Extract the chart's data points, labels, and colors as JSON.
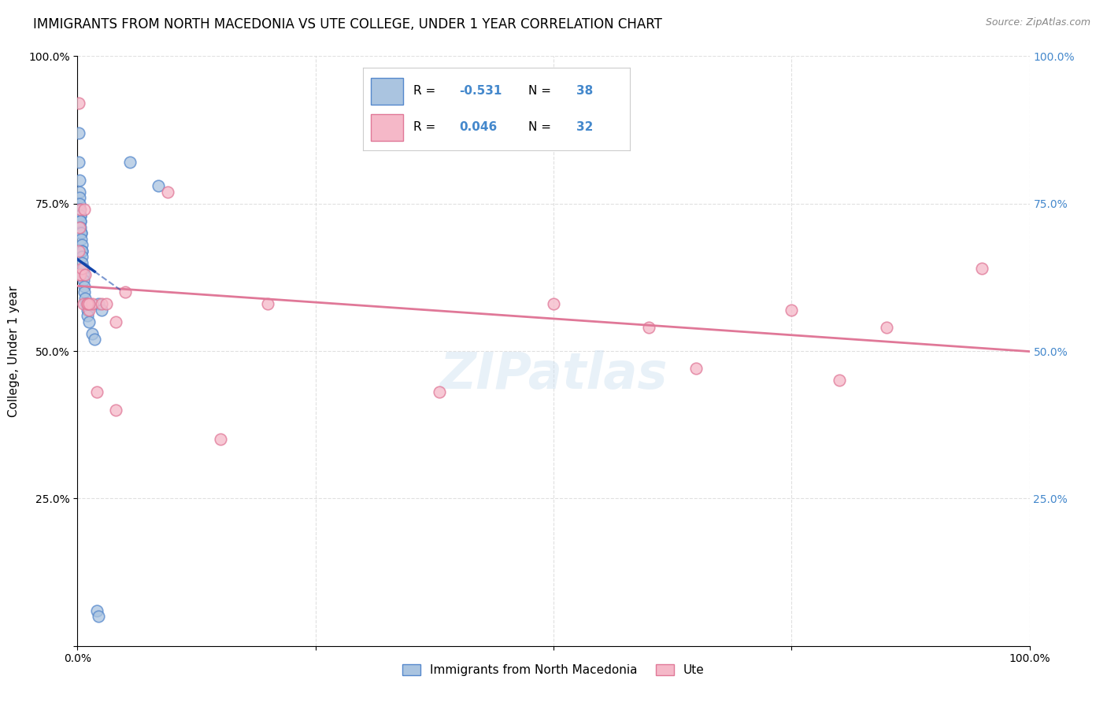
{
  "title": "IMMIGRANTS FROM NORTH MACEDONIA VS UTE COLLEGE, UNDER 1 YEAR CORRELATION CHART",
  "source": "Source: ZipAtlas.com",
  "ylabel": "College, Under 1 year",
  "xlim": [
    0,
    1.0
  ],
  "ylim": [
    0,
    1.0
  ],
  "blue_color": "#aac4e0",
  "blue_edge": "#5588cc",
  "blue_line": "#1144aa",
  "pink_color": "#f5b8c8",
  "pink_edge": "#e07898",
  "pink_line": "#e07898",
  "watermark": "ZIPatlas",
  "blue_scatter_x": [
    0.001,
    0.001,
    0.002,
    0.002,
    0.002,
    0.002,
    0.002,
    0.003,
    0.003,
    0.003,
    0.003,
    0.003,
    0.003,
    0.004,
    0.004,
    0.004,
    0.005,
    0.005,
    0.005,
    0.005,
    0.005,
    0.006,
    0.006,
    0.006,
    0.007,
    0.007,
    0.008,
    0.009,
    0.01,
    0.01,
    0.012,
    0.015,
    0.018,
    0.022,
    0.025,
    0.055,
    0.085,
    0.02,
    0.022
  ],
  "blue_scatter_y": [
    0.87,
    0.82,
    0.79,
    0.77,
    0.76,
    0.75,
    0.74,
    0.73,
    0.73,
    0.72,
    0.72,
    0.71,
    0.7,
    0.7,
    0.7,
    0.69,
    0.68,
    0.67,
    0.67,
    0.66,
    0.65,
    0.64,
    0.63,
    0.62,
    0.61,
    0.6,
    0.59,
    0.58,
    0.57,
    0.56,
    0.55,
    0.53,
    0.52,
    0.58,
    0.57,
    0.82,
    0.78,
    0.06,
    0.05
  ],
  "pink_scatter_x": [
    0.001,
    0.001,
    0.002,
    0.002,
    0.003,
    0.003,
    0.005,
    0.006,
    0.007,
    0.008,
    0.01,
    0.012,
    0.015,
    0.02,
    0.025,
    0.03,
    0.04,
    0.05,
    0.095,
    0.15,
    0.2,
    0.38,
    0.5,
    0.6,
    0.65,
    0.75,
    0.8,
    0.85,
    0.95,
    0.01,
    0.012,
    0.04
  ],
  "pink_scatter_y": [
    0.92,
    0.67,
    0.71,
    0.63,
    0.74,
    0.63,
    0.64,
    0.58,
    0.74,
    0.63,
    0.58,
    0.57,
    0.58,
    0.43,
    0.58,
    0.58,
    0.55,
    0.6,
    0.77,
    0.35,
    0.58,
    0.43,
    0.58,
    0.54,
    0.47,
    0.57,
    0.45,
    0.54,
    0.64,
    0.58,
    0.58,
    0.4
  ],
  "title_fontsize": 12,
  "axis_label_fontsize": 11,
  "tick_fontsize": 10,
  "source_fontsize": 9,
  "marker_size": 110,
  "background_color": "#ffffff",
  "grid_color": "#dddddd",
  "right_yaxis_color": "#4488cc"
}
